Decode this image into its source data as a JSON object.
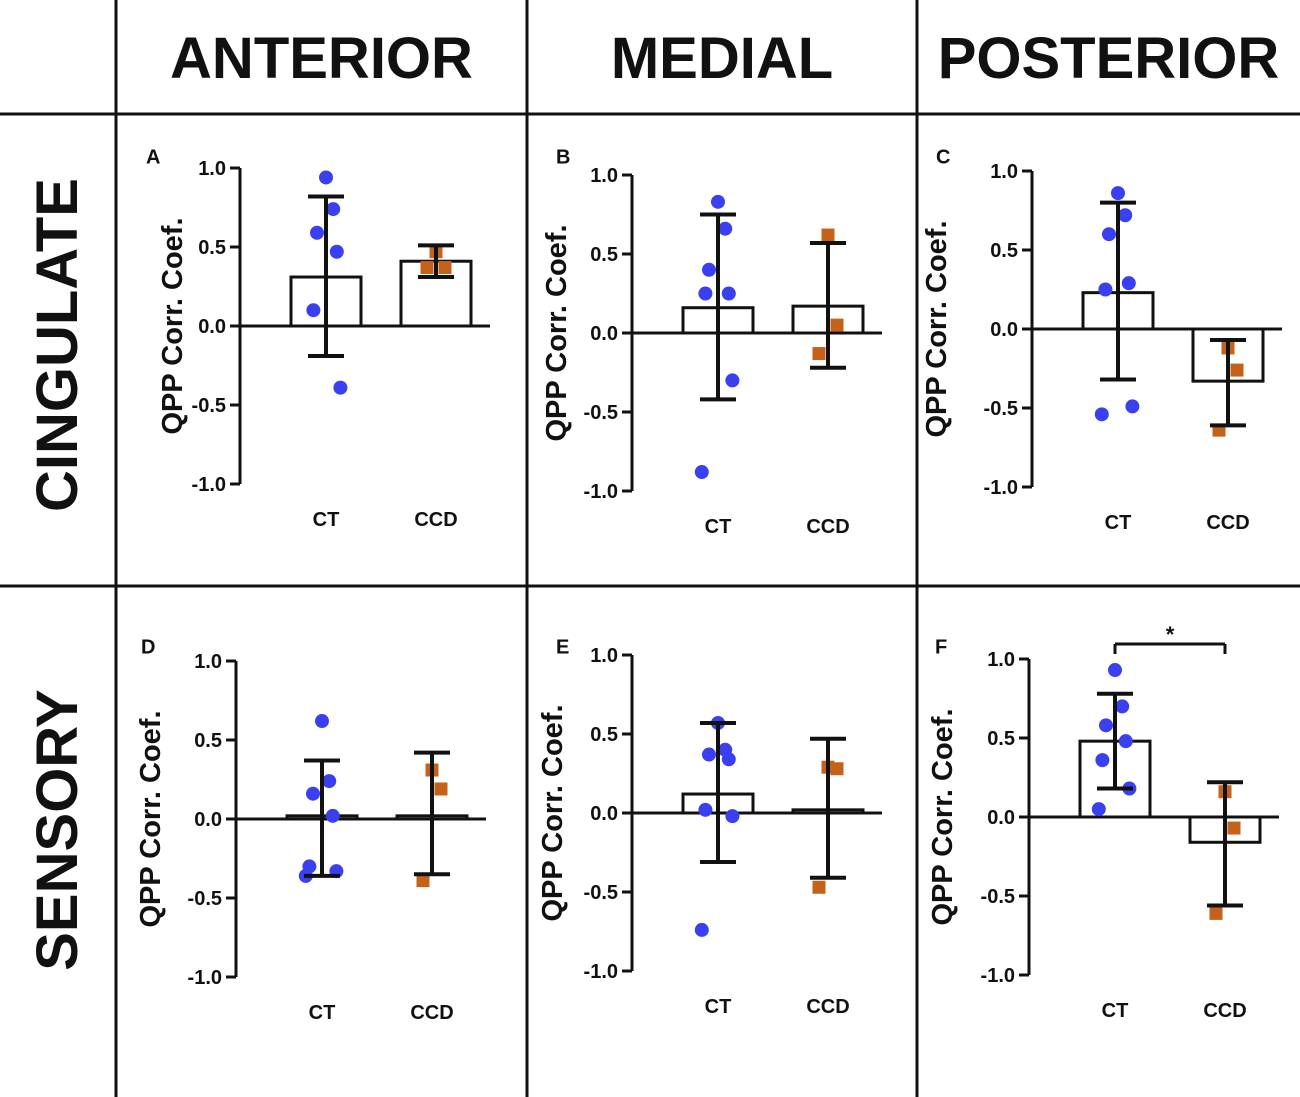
{
  "headers": {
    "columns": [
      "ANTERIOR",
      "MEDIAL",
      "POSTERIOR"
    ],
    "rows": [
      "CINGULATE",
      "SENSORY"
    ]
  },
  "colors": {
    "ct": "#3a3ff0",
    "ccd": "#c5621a",
    "axis": "#111111"
  },
  "chart_data": [
    {
      "panel": "A",
      "type": "bar",
      "ylabel": "QPP Corr. Coef.",
      "ylim": [
        -1.0,
        1.0
      ],
      "yticks": [
        "1.0",
        "0.5",
        "0.0",
        "-0.5",
        "-1.0"
      ],
      "categories": [
        "CT",
        "CCD"
      ],
      "means": [
        0.31,
        0.41
      ],
      "errors": [
        [
          -0.19,
          0.82
        ],
        [
          0.31,
          0.51
        ]
      ],
      "points": {
        "CT": [
          0.94,
          0.74,
          0.59,
          0.47,
          0.1,
          -0.39
        ],
        "CCD": [
          0.47,
          0.37,
          0.37
        ]
      },
      "significance": null
    },
    {
      "panel": "B",
      "type": "bar",
      "ylabel": "QPP Corr. Coef.",
      "ylim": [
        -1.0,
        1.0
      ],
      "yticks": [
        "1.0",
        "0.5",
        "0.0",
        "-0.5",
        "-1.0"
      ],
      "categories": [
        "CT",
        "CCD"
      ],
      "means": [
        0.16,
        0.17
      ],
      "errors": [
        [
          -0.42,
          0.75
        ],
        [
          -0.22,
          0.57
        ]
      ],
      "points": {
        "CT": [
          0.83,
          0.66,
          0.4,
          0.25,
          0.25,
          -0.3,
          -0.88
        ],
        "CCD": [
          0.62,
          0.05,
          -0.13
        ]
      },
      "significance": null
    },
    {
      "panel": "C",
      "type": "bar",
      "ylabel": "QPP Corr. Coef.",
      "ylim": [
        -1.0,
        1.0
      ],
      "yticks": [
        "1.0",
        "0.5",
        "0.0",
        "-0.5",
        "-1.0"
      ],
      "categories": [
        "CT",
        "CCD"
      ],
      "means": [
        0.23,
        -0.33
      ],
      "errors": [
        [
          -0.32,
          0.8
        ],
        [
          -0.61,
          -0.07
        ]
      ],
      "points": {
        "CT": [
          0.86,
          0.72,
          0.6,
          0.29,
          0.25,
          -0.49,
          -0.54
        ],
        "CCD": [
          -0.12,
          -0.26,
          -0.64
        ]
      },
      "significance": null
    },
    {
      "panel": "D",
      "type": "bar",
      "ylabel": "QPP Corr. Coef.",
      "ylim": [
        -1.0,
        1.0
      ],
      "yticks": [
        "1.0",
        "0.5",
        "0.0",
        "-0.5",
        "-1.0"
      ],
      "categories": [
        "CT",
        "CCD"
      ],
      "means": [
        0.02,
        0.02
      ],
      "errors": [
        [
          -0.36,
          0.37
        ],
        [
          -0.35,
          0.42
        ]
      ],
      "points": {
        "CT": [
          0.62,
          0.24,
          0.16,
          0.02,
          -0.3,
          -0.33,
          -0.36
        ],
        "CCD": [
          0.31,
          0.19,
          -0.39
        ]
      },
      "significance": null
    },
    {
      "panel": "E",
      "type": "bar",
      "ylabel": "QPP Corr. Coef.",
      "ylim": [
        -1.0,
        1.0
      ],
      "yticks": [
        "1.0",
        "0.5",
        "0.0",
        "-0.5",
        "-1.0"
      ],
      "categories": [
        "CT",
        "CCD"
      ],
      "means": [
        0.12,
        0.02
      ],
      "errors": [
        [
          -0.31,
          0.57
        ],
        [
          -0.41,
          0.47
        ]
      ],
      "points": {
        "CT": [
          0.57,
          0.4,
          0.37,
          0.34,
          0.02,
          -0.02,
          -0.74
        ],
        "CCD": [
          0.29,
          0.28,
          -0.47
        ]
      },
      "significance": null
    },
    {
      "panel": "F",
      "type": "bar",
      "ylabel": "QPP Corr. Coef.",
      "ylim": [
        -1.0,
        1.0
      ],
      "yticks": [
        "1.0",
        "0.5",
        "0.0",
        "-0.5",
        "-1.0"
      ],
      "categories": [
        "CT",
        "CCD"
      ],
      "means": [
        0.48,
        -0.16
      ],
      "errors": [
        [
          0.18,
          0.78
        ],
        [
          -0.56,
          0.22
        ]
      ],
      "points": {
        "CT": [
          0.93,
          0.7,
          0.58,
          0.48,
          0.36,
          0.18,
          0.05
        ],
        "CCD": [
          0.16,
          -0.07,
          -0.61
        ]
      },
      "significance": "*"
    }
  ]
}
